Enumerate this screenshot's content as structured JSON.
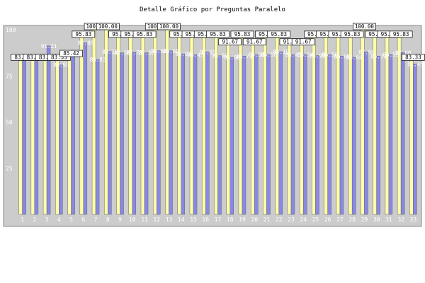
{
  "chart_data": {
    "type": "bar",
    "title": "Detalle Gráfico por Preguntas Paralelo",
    "categories": [
      "1",
      "2",
      "3",
      "4",
      "5",
      "6",
      "7",
      "8",
      "9",
      "10",
      "11",
      "12",
      "13",
      "14",
      "15",
      "16",
      "17",
      "18",
      "19",
      "20",
      "21",
      "22",
      "23",
      "24",
      "25",
      "26",
      "27",
      "28",
      "29",
      "30",
      "31",
      "32",
      "33"
    ],
    "series": [
      {
        "values": [
          83.33,
          83.33,
          83.33,
          83.33,
          85.42,
          95.83,
          100.0,
          100.0,
          95.83,
          95.83,
          95.83,
          100.0,
          100.0,
          95.83,
          95.83,
          95.83,
          95.83,
          91.67,
          95.83,
          91.67,
          95.83,
          95.83,
          91.67,
          91.67,
          95.83,
          95.83,
          95.83,
          95.83,
          100.0,
          95.83,
          95.83,
          95.83,
          83.33
        ]
      },
      {
        "values": [
          85.42,
          85.42,
          91.21,
          80.95,
          88.1,
          92.86,
          83.83,
          88.19,
          87.5,
          87.78,
          87.5,
          88.6,
          88.6,
          86.91,
          86.43,
          87.95,
          85.92,
          85.0,
          85.71,
          86.5,
          86.5,
          88.1,
          86.43,
          86.54,
          85.98,
          86.5,
          85.69,
          85.04,
          87.96,
          85.71,
          86.59,
          87.6,
          81.45
        ]
      }
    ],
    "series_colors": [
      "#ffffa8",
      "#8888e8"
    ],
    "ylim": [
      0,
      100
    ],
    "yticks": [
      25,
      50,
      75,
      100
    ],
    "grid": false,
    "legend": "none"
  }
}
